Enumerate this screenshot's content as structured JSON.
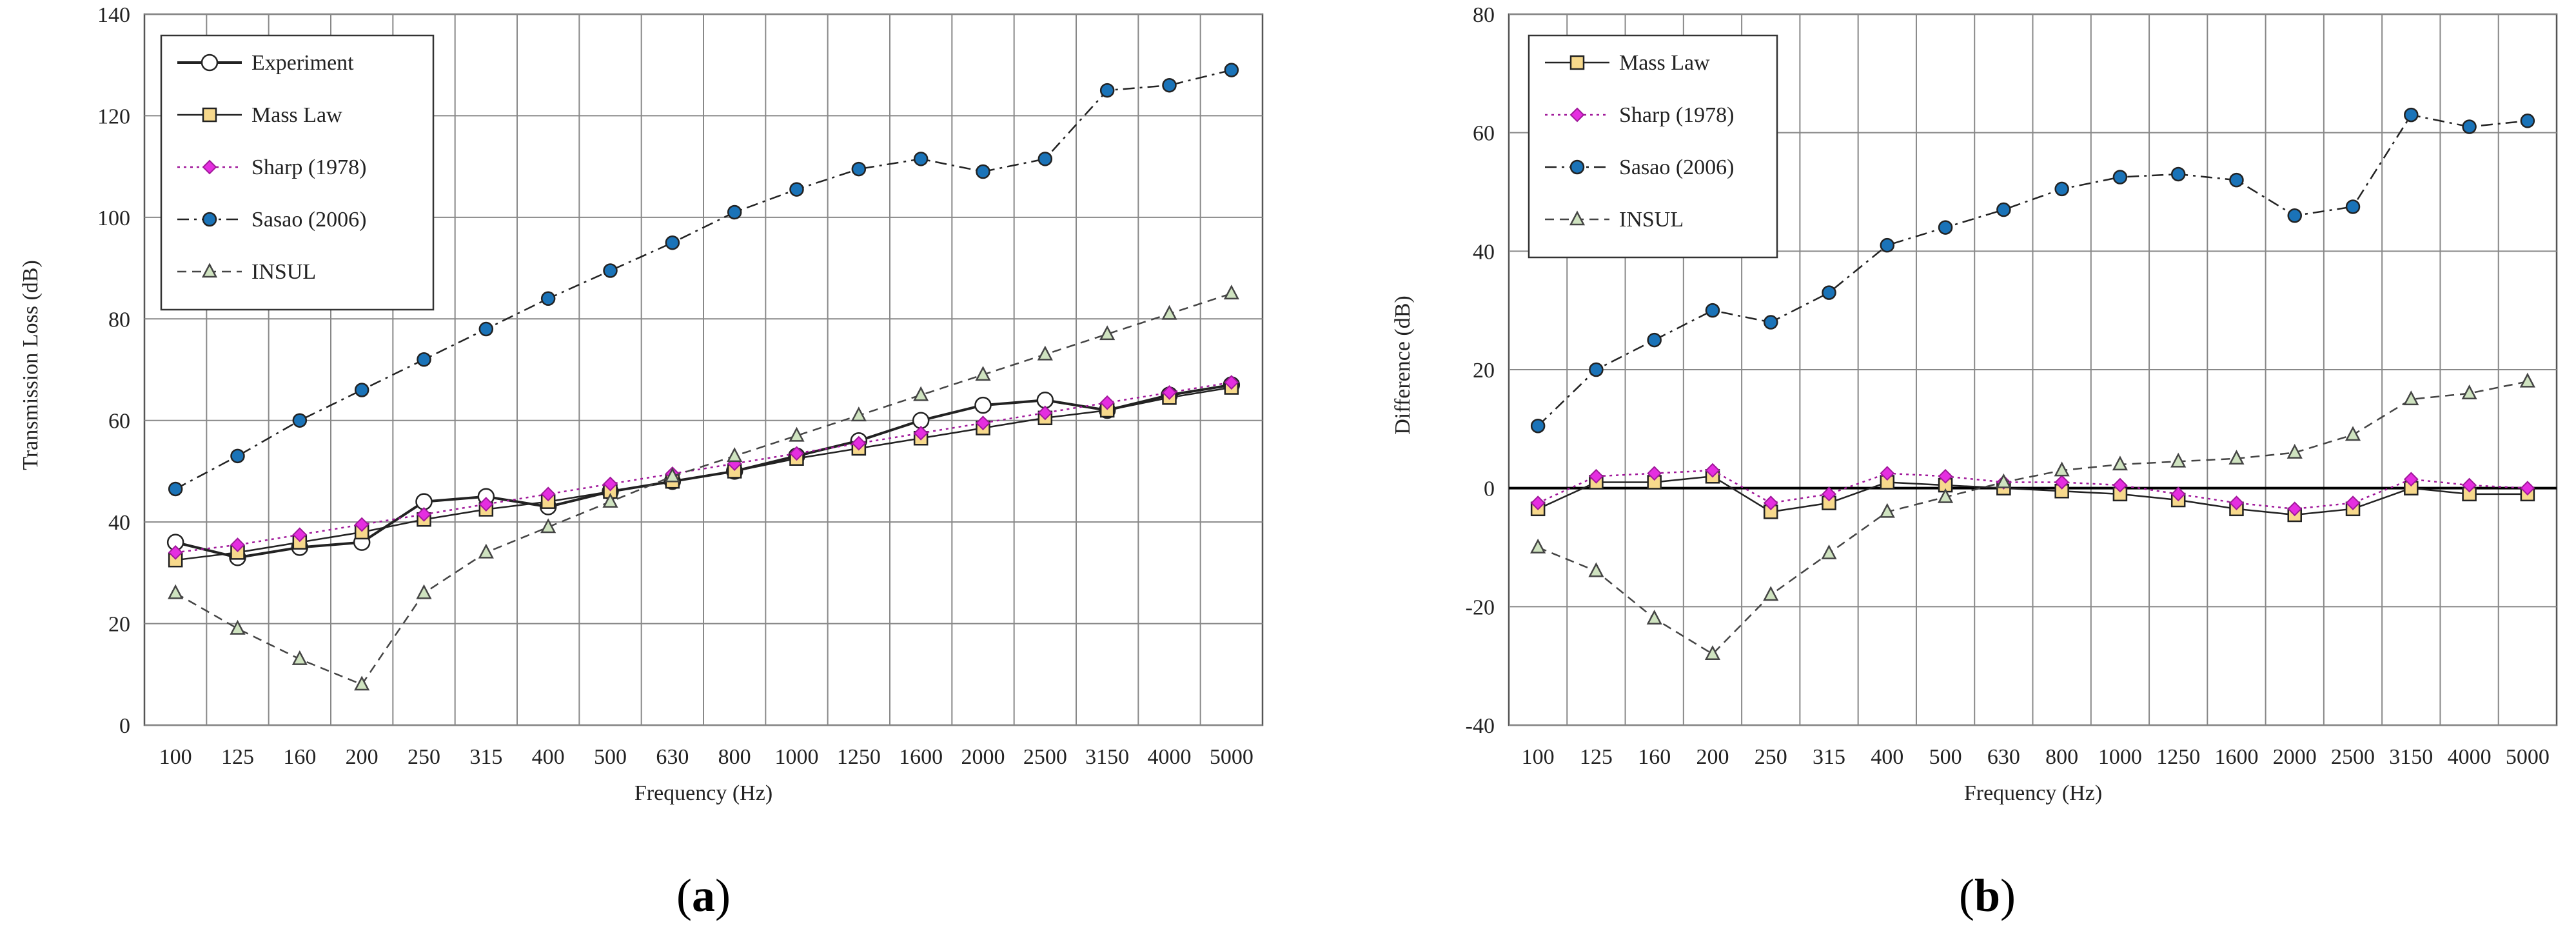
{
  "chart_data": [
    {
      "type": "line",
      "panel_label": "(a)",
      "panel_letter": "a",
      "xlabel": "Frequency (Hz)",
      "ylabel": "Transmission Loss (dB)",
      "categories": [
        "100",
        "125",
        "160",
        "200",
        "250",
        "315",
        "400",
        "500",
        "630",
        "800",
        "1000",
        "1250",
        "1600",
        "2000",
        "2500",
        "3150",
        "4000",
        "5000"
      ],
      "ylim": [
        0,
        140
      ],
      "yticks": [
        0,
        20,
        40,
        60,
        80,
        100,
        120,
        140
      ],
      "grid": true,
      "legend_position": "top-left",
      "series": [
        {
          "name": "Experiment",
          "marker": "circle-open",
          "line": "solid-bold",
          "color": "#222222",
          "fill": "#ffffff",
          "values": [
            36,
            33,
            35,
            36,
            44,
            45,
            43,
            46,
            48,
            50,
            53,
            56,
            60,
            63,
            64,
            62,
            65,
            67
          ]
        },
        {
          "name": "Mass Law",
          "marker": "square",
          "line": "solid",
          "color": "#222222",
          "fill": "#f7d98c",
          "values": [
            32.5,
            34,
            36,
            38,
            40.5,
            42.5,
            44,
            46,
            48,
            50,
            52.5,
            54.5,
            56.5,
            58.5,
            60.5,
            62,
            64.5,
            66.5
          ]
        },
        {
          "name": "Sharp (1978)",
          "marker": "diamond",
          "line": "dotted",
          "color": "#a0189a",
          "fill": "#e52ee0",
          "values": [
            34,
            35.5,
            37.5,
            39.5,
            41.5,
            43.5,
            45.5,
            47.5,
            49.5,
            51.5,
            53.5,
            55.5,
            57.5,
            59.5,
            61.5,
            63.5,
            65.5,
            67.5
          ]
        },
        {
          "name": "Sasao (2006)",
          "marker": "circle",
          "line": "dashdot",
          "color": "#222222",
          "fill": "#1a73b8",
          "values": [
            46.5,
            53,
            60,
            66,
            72,
            78,
            84,
            89.5,
            95,
            101,
            105.5,
            109.5,
            111.5,
            109,
            111.5,
            125,
            126,
            129
          ]
        },
        {
          "name": "INSUL",
          "marker": "triangle-open",
          "line": "dashed",
          "color": "#444444",
          "fill": "#cfe3c0",
          "values": [
            26,
            19,
            13,
            8,
            26,
            34,
            39,
            44,
            49,
            53,
            57,
            61,
            65,
            69,
            73,
            77,
            81,
            85
          ]
        }
      ]
    },
    {
      "type": "line",
      "panel_label": "(b)",
      "panel_letter": "b",
      "xlabel": "Frequency (Hz)",
      "ylabel": "Difference (dB)",
      "categories": [
        "100",
        "125",
        "160",
        "200",
        "250",
        "315",
        "400",
        "500",
        "630",
        "800",
        "1000",
        "1250",
        "1600",
        "2000",
        "2500",
        "3150",
        "4000",
        "5000"
      ],
      "ylim": [
        -40,
        80
      ],
      "yticks": [
        -40,
        -20,
        0,
        20,
        40,
        60,
        80
      ],
      "grid": true,
      "legend_position": "top-left",
      "series": [
        {
          "name": "Mass Law",
          "marker": "square",
          "line": "solid",
          "color": "#222222",
          "fill": "#f7d98c",
          "values": [
            -3.5,
            1,
            1,
            2,
            -4,
            -2.5,
            1,
            0.5,
            0,
            -0.5,
            -1,
            -2,
            -3.5,
            -4.5,
            -3.5,
            0,
            -1,
            -1
          ]
        },
        {
          "name": "Sharp (1978)",
          "marker": "diamond",
          "line": "dotted",
          "color": "#a0189a",
          "fill": "#e52ee0",
          "values": [
            -2.5,
            2,
            2.5,
            3,
            -2.5,
            -1,
            2.5,
            2,
            1,
            1,
            0.5,
            -1,
            -2.5,
            -3.5,
            -2.5,
            1.5,
            0.5,
            0
          ]
        },
        {
          "name": "Sasao (2006)",
          "marker": "circle",
          "line": "dashdot",
          "color": "#222222",
          "fill": "#1a73b8",
          "values": [
            10.5,
            20,
            25,
            30,
            28,
            33,
            41,
            44,
            47,
            50.5,
            52.5,
            53,
            52,
            46,
            47.5,
            63,
            61,
            62
          ]
        },
        {
          "name": "INSUL",
          "marker": "triangle-open",
          "line": "dashed",
          "color": "#444444",
          "fill": "#cfe3c0",
          "values": [
            -10,
            -14,
            -22,
            -28,
            -18,
            -11,
            -4,
            -1.5,
            1,
            3,
            4,
            4.5,
            5,
            6,
            9,
            15,
            16,
            18
          ]
        }
      ]
    }
  ]
}
